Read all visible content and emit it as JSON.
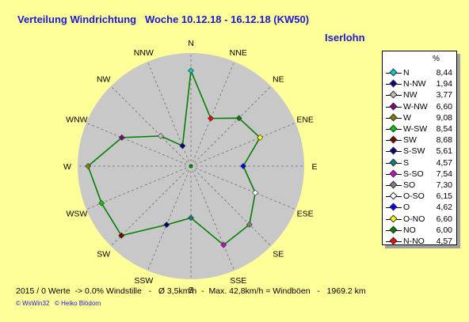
{
  "header": {
    "title": "Verteilung Windrichtung   Woche 10.12.18 - 16.12.18 (KW50)",
    "location": "Iserlohn"
  },
  "legend": {
    "unit": "%"
  },
  "footer": {
    "stats": "2015 / 0 Werte  -> 0.0% Windstille   -   Ø 3,5km/h  -  Max. 42,8km/h = Windböen   -   1969.2 km",
    "credit_left": "© WsWin32",
    "credit_right": "© Heiko Blödorn"
  },
  "chart_data": {
    "type": "radar",
    "title": "Verteilung Windrichtung   Woche 10.12.18 - 16.12.18 (KW50)",
    "unit": "%",
    "rmax": 10,
    "grid": true,
    "series_color": "#008000",
    "directions": [
      "N",
      "NNE",
      "NE",
      "ENE",
      "E",
      "ESE",
      "SE",
      "SSE",
      "S",
      "SSW",
      "SW",
      "WSW",
      "W",
      "WNW",
      "NW",
      "NNW"
    ],
    "values": [
      8.44,
      4.57,
      6.0,
      6.6,
      4.62,
      6.15,
      7.3,
      7.54,
      4.57,
      5.61,
      8.68,
      8.54,
      9.08,
      6.6,
      3.77,
      1.94
    ],
    "legend": [
      {
        "name": "N",
        "value": "8,44",
        "color": "#00cccc"
      },
      {
        "name": "N-NW",
        "value": "1,94",
        "color": "#000080"
      },
      {
        "name": "NW",
        "value": "3,77",
        "color": "#c0c0c0"
      },
      {
        "name": "W-NW",
        "value": "6,60",
        "color": "#800080"
      },
      {
        "name": "W",
        "value": "9,08",
        "color": "#808000"
      },
      {
        "name": "W-SW",
        "value": "8,54",
        "color": "#00cc00"
      },
      {
        "name": "SW",
        "value": "8,68",
        "color": "#800000"
      },
      {
        "name": "S-SW",
        "value": "5,61",
        "color": "#000080"
      },
      {
        "name": "S",
        "value": "4,57",
        "color": "#008080"
      },
      {
        "name": "S-SO",
        "value": "7,54",
        "color": "#cc00cc"
      },
      {
        "name": "SO",
        "value": "7,30",
        "color": "#808080"
      },
      {
        "name": "O-SO",
        "value": "6,15",
        "color": "#ffffff"
      },
      {
        "name": "O",
        "value": "4,62",
        "color": "#0000ff"
      },
      {
        "name": "O-NO",
        "value": "6,60",
        "color": "#ffff00"
      },
      {
        "name": "NO",
        "value": "6,00",
        "color": "#008000"
      },
      {
        "name": "N-NO",
        "value": "4,57",
        "color": "#ff0000"
      }
    ]
  }
}
